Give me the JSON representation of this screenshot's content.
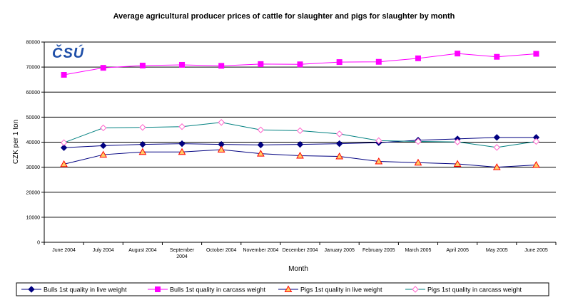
{
  "chart_data": {
    "type": "line",
    "title": "Average agricultural producer prices of cattle for slaughter and pigs for slaughter by month",
    "xlabel": "Month",
    "ylabel": "CZK per 1 ton",
    "ylim": [
      0,
      80000
    ],
    "yticks": [
      0,
      10000,
      20000,
      30000,
      40000,
      50000,
      60000,
      70000,
      80000
    ],
    "grid": "horizontal",
    "legend_position": "bottom",
    "logo": "ČSÚ",
    "categories": [
      [
        "June 2004"
      ],
      [
        "July 2004"
      ],
      [
        "August 2004"
      ],
      [
        "September",
        "2004"
      ],
      [
        "October 2004"
      ],
      [
        "November 2004"
      ],
      [
        "December 2004"
      ],
      [
        "January 2005"
      ],
      [
        "February 2005"
      ],
      [
        "March 2005"
      ],
      [
        "April 2005"
      ],
      [
        "May 2005"
      ],
      [
        "June 2005"
      ]
    ],
    "series": [
      {
        "name": "Bulls 1st quality in live weight",
        "color": "#000080",
        "marker": "diamond-filled",
        "values": [
          37800,
          38600,
          39100,
          39400,
          39100,
          38900,
          39100,
          39400,
          39800,
          40800,
          41300,
          41900,
          41900
        ]
      },
      {
        "name": "Bulls 1st quality in carcass weight",
        "color": "#ff00ff",
        "marker": "square-filled",
        "values": [
          66900,
          69700,
          70600,
          70900,
          70500,
          71200,
          71100,
          72000,
          72100,
          73500,
          75400,
          74100,
          75300
        ]
      },
      {
        "name": "Pigs 1st quality in live weight",
        "color": "#000080",
        "marker": "triangle-orange",
        "values": [
          31200,
          35000,
          36100,
          36100,
          37000,
          35400,
          34600,
          34300,
          32300,
          31800,
          31300,
          30000,
          30900
        ]
      },
      {
        "name": "Pigs 1st quality in carcass weight",
        "color": "#008080",
        "marker": "diamond-open-pink",
        "values": [
          39800,
          45700,
          45900,
          46200,
          47900,
          44900,
          44600,
          43300,
          40600,
          40300,
          40100,
          37900,
          40300
        ]
      }
    ]
  }
}
